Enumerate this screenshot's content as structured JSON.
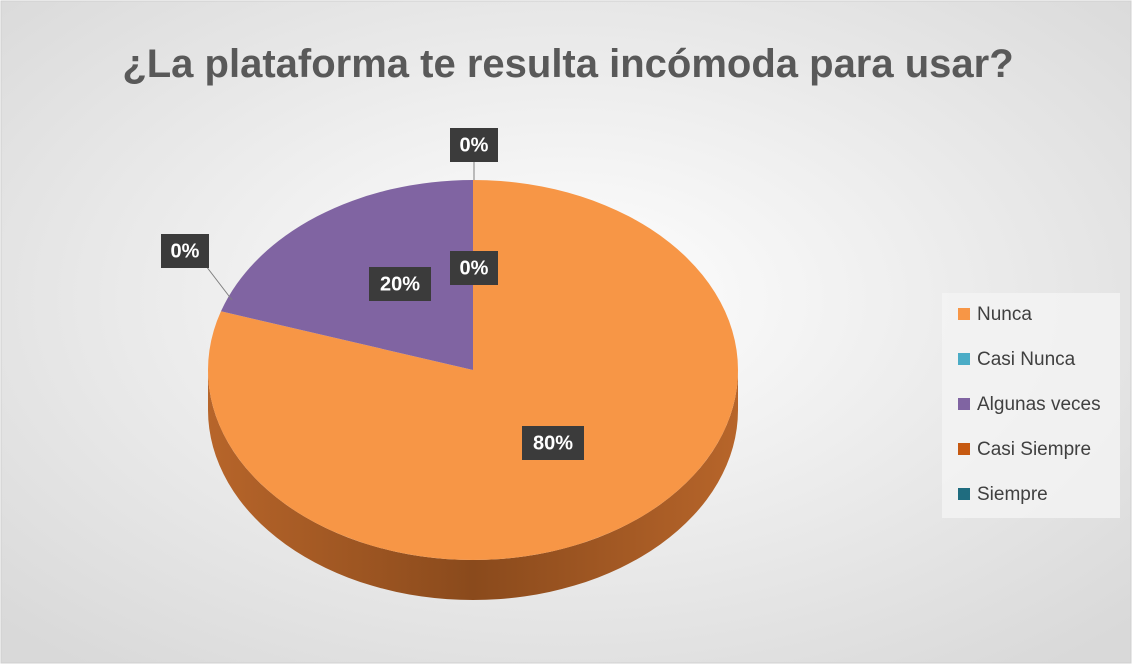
{
  "chart_data": {
    "type": "pie",
    "title": "¿La plataforma te resulta incómoda para usar?",
    "categories": [
      "Nunca",
      "Casi Nunca",
      "Algunas veces",
      "Casi Siempre",
      "Siempre"
    ],
    "values": [
      80,
      0,
      20,
      0,
      0
    ],
    "value_labels": [
      "80%",
      "0%",
      "20%",
      "0%",
      "0%"
    ],
    "colors": [
      "#f79646",
      "#4bacc6",
      "#8064a2",
      "#c65911",
      "#1f6c7f"
    ],
    "legend": "right"
  }
}
